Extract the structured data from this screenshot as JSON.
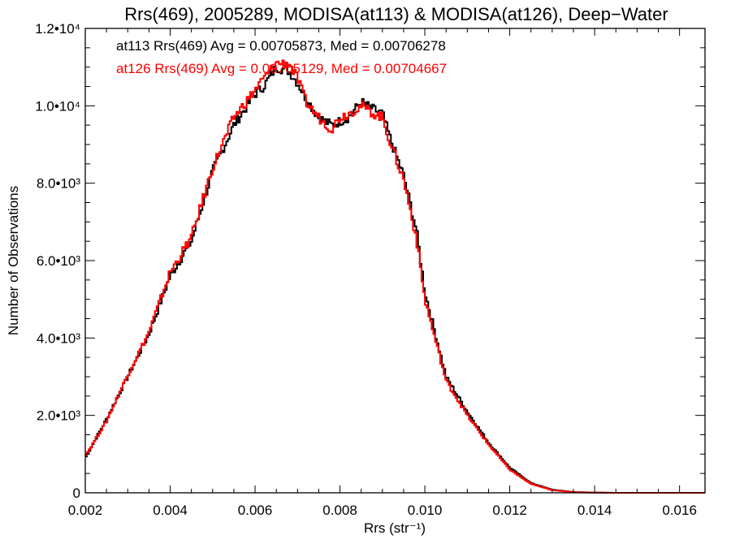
{
  "chart_data": {
    "type": "line",
    "style": "step-histogram",
    "title": "Rrs(469), 2005289, MODISA(at113) & MODISA(at126), Deep−Water",
    "xlabel": "Rrs (str⁻¹)",
    "ylabel": "Number of Observations",
    "xlim": [
      0.002,
      0.0166
    ],
    "ylim": [
      0,
      12000
    ],
    "x_ticks": [
      0.002,
      0.004,
      0.006,
      0.008,
      0.01,
      0.012,
      0.014,
      0.016
    ],
    "x_tick_labels": [
      "0.002",
      "0.004",
      "0.006",
      "0.008",
      "0.010",
      "0.012",
      "0.014",
      "0.016"
    ],
    "y_ticks": [
      0,
      2000,
      4000,
      6000,
      8000,
      10000,
      12000
    ],
    "y_tick_labels": [
      "0",
      "2.0•10³",
      "4.0•10³",
      "6.0•10³",
      "8.0•10³",
      "1.0•10⁴",
      "1.2•10⁴"
    ],
    "grid": false,
    "legend_placement": "top-left",
    "x": [
      0.002,
      0.0025,
      0.003,
      0.0035,
      0.004,
      0.0045,
      0.005,
      0.0055,
      0.006,
      0.0062,
      0.0065,
      0.0068,
      0.007,
      0.0072,
      0.0075,
      0.0078,
      0.008,
      0.0082,
      0.0085,
      0.0088,
      0.009,
      0.0092,
      0.0095,
      0.0098,
      0.01,
      0.0105,
      0.011,
      0.0115,
      0.012,
      0.0125,
      0.013,
      0.0135,
      0.014,
      0.0145,
      0.015,
      0.016,
      0.0166
    ],
    "series": [
      {
        "name": "at113",
        "color": "#000000",
        "values": [
          900,
          1900,
          3000,
          4100,
          5600,
          6500,
          8300,
          9500,
          10300,
          10500,
          11000,
          10900,
          10600,
          10200,
          9700,
          9500,
          9600,
          9700,
          10100,
          9900,
          9800,
          9100,
          8200,
          6800,
          5200,
          3000,
          2100,
          1300,
          650,
          250,
          80,
          20,
          5,
          0,
          0,
          0,
          0
        ]
      },
      {
        "name": "at126",
        "color": "#ff0000",
        "values": [
          950,
          1850,
          3050,
          4150,
          5700,
          6600,
          8400,
          9700,
          10400,
          10700,
          11100,
          11100,
          10700,
          10100,
          9700,
          9400,
          9700,
          9800,
          10000,
          9800,
          9700,
          9000,
          8100,
          6600,
          5000,
          2900,
          2000,
          1250,
          600,
          230,
          70,
          15,
          3,
          0,
          0,
          0,
          0
        ]
      }
    ],
    "legend": [
      {
        "text": "at113 Rrs(469) Avg = 0.00705873, Med = 0.00706278",
        "color": "#000000"
      },
      {
        "text": "at126 Rrs(469) Avg = 0.00705129, Med = 0.00704667",
        "color": "#ff0000"
      }
    ]
  }
}
